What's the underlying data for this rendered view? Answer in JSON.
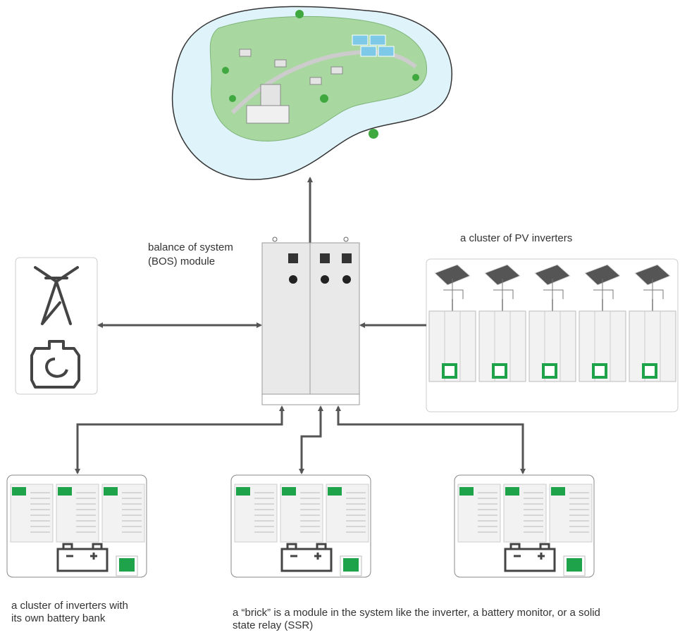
{
  "labels": {
    "bos": [
      "balance of system",
      "(BOS) module"
    ],
    "pv_cluster": "a cluster of PV inverters",
    "battery_cluster": [
      "a cluster of inverters with",
      "its own battery bank"
    ],
    "brick": [
      "a “brick” is a module in the system like the inverter, a battery monitor, or a solid",
      "state relay (SSR)"
    ]
  }
}
